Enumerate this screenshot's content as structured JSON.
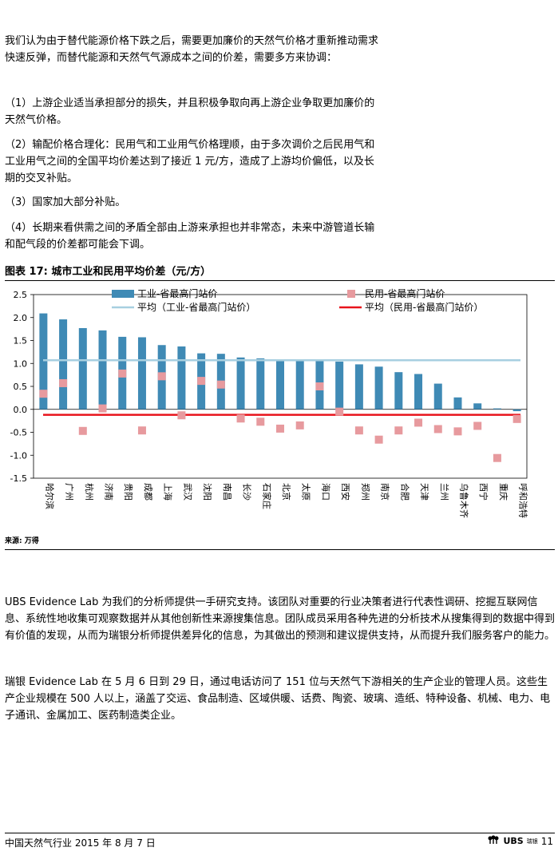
{
  "paragraphs": {
    "p1": "我们认为由于替代能源价格下跌之后，需要更加廉价的天然气价格才重新推动需求快速反弹，而替代能源和天然气气源成本之间的价差，需要多方来协调：",
    "p2": "（1）上游企业适当承担部分的损失，并且积极争取向再上游企业争取更加廉价的天然气价格。",
    "p3": "（2）输配价格合理化：民用气和工业用气价格理顺，由于多次调价之后民用气和工业用气之间的全国平均价差达到了接近 1 元/方，造成了上游均价偏低，以及长期的交叉补贴。",
    "p4": "（3）国家加大部分补贴。",
    "p5": "（4）长期来看供需之间的矛盾全部由上游来承担也并非常态，未来中游管道长输和配气段的价差都可能会下调。",
    "p6": "UBS Evidence Lab 为我们的分析师提供一手研究支持。该团队对重要的行业决策者进行代表性调研、挖掘互联网信息、系统性地收集可观察数据并从其他创新性来源搜集信息。团队成员采用各种先进的分析技术从搜集得到的数据中得到有价值的发现，从而为瑞银分析师提供差异化的信息，为其做出的预测和建议提供支持，从而提升我们服务客户的能力。",
    "p7": "瑞银 Evidence Lab 在 5 月 6 日到 29 日，通过电话访问了 151 位与天然气下游相关的生产企业的管理人员。这些生产企业规模在 500 人以上，涵盖了交运、食品制造、区域供暖、话费、陶瓷、玻璃、造纸、特种设备、机械、电力、电子通讯、金属加工、医药制造类企业。"
  },
  "figure": {
    "title": "图表 17: 城市工业和民用平均价差（元/方）",
    "source": "来源: 万得"
  },
  "chart_data": {
    "type": "bar",
    "categories": [
      "哈尔滨",
      "广州",
      "杭州",
      "济南",
      "贵阳",
      "成都",
      "上海",
      "武汉",
      "沈阳",
      "南昌",
      "长沙",
      "石家庄",
      "北京",
      "太原",
      "海口",
      "西安",
      "郑州",
      "南京",
      "合肥",
      "天津",
      "兰州",
      "乌鲁木齐",
      "西宁",
      "重庆",
      "呼和浩特"
    ],
    "series": [
      {
        "name": "工业-省最高门站价",
        "type": "bar",
        "color": "#3f8ab5",
        "values": [
          2.09,
          1.96,
          1.77,
          1.72,
          1.58,
          1.57,
          1.4,
          1.37,
          1.22,
          1.21,
          1.13,
          1.11,
          1.07,
          1.07,
          1.07,
          1.04,
          0.98,
          0.93,
          0.81,
          0.77,
          0.56,
          0.26,
          0.13,
          0.02,
          -0.04
        ]
      },
      {
        "name": "民用-省最高门站价",
        "type": "scatter",
        "color": "#e79a9e",
        "values": [
          0.34,
          0.57,
          -0.47,
          0.02,
          0.78,
          -0.46,
          0.72,
          -0.13,
          0.62,
          0.54,
          -0.2,
          -0.27,
          -0.42,
          -0.35,
          0.5,
          -0.05,
          -0.46,
          -0.66,
          -0.46,
          -0.29,
          -0.43,
          -0.48,
          -0.36,
          -1.06,
          -0.21
        ]
      },
      {
        "name": "平均（工业-省最高门站价）",
        "type": "line",
        "color": "#a7cfe0",
        "value": 1.07
      },
      {
        "name": "平均（民用-省最高门站价）",
        "type": "line",
        "color": "#e8131b",
        "value": -0.12
      }
    ],
    "ylim": [
      -1.5,
      2.5
    ],
    "yticks": [
      "2.5",
      "2.0",
      "1.5",
      "1.0",
      "0.5",
      "0.0",
      "-0.5",
      "-1.0",
      "-1.5"
    ],
    "ytick_values": [
      2.5,
      2.0,
      1.5,
      1.0,
      0.5,
      0.0,
      -0.5,
      -1.0,
      -1.5
    ],
    "legend_position": "top"
  },
  "footer": {
    "left": "中国天然气行业  2015 年 8 月 7 日",
    "logo": "UBS",
    "logo_cn": "瑞银",
    "page": "11"
  }
}
